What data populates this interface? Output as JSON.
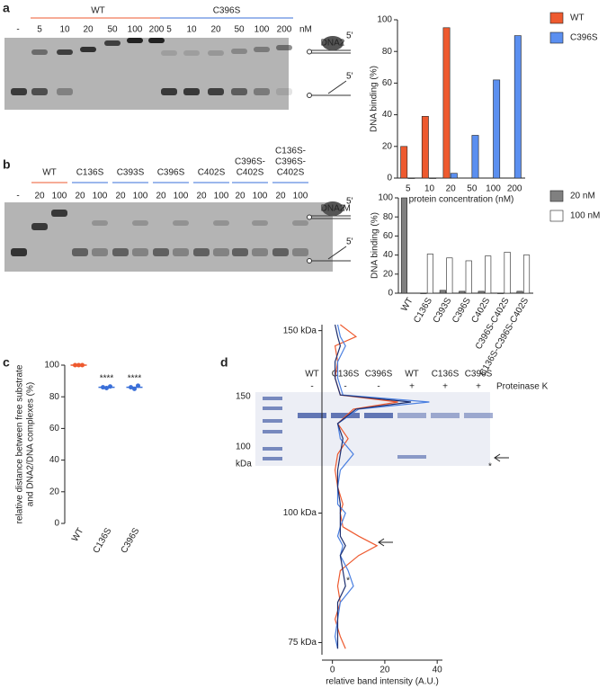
{
  "panels": [
    "a",
    "b",
    "c",
    "d"
  ],
  "gel_a": {
    "control": "-",
    "unit": "nM",
    "protein": "DNA2",
    "end_labels": [
      "5'",
      "5'"
    ],
    "groups": [
      {
        "label": "WT",
        "color": "#ee5a2f",
        "lanes": [
          "5",
          "10",
          "20",
          "50",
          "100",
          "200"
        ]
      },
      {
        "label": "C396S",
        "color": "#3a6fd8",
        "lanes": [
          "5",
          "10",
          "20",
          "50",
          "100",
          "200"
        ]
      }
    ]
  },
  "gel_b": {
    "control": "-",
    "unit": "nM",
    "protein": "DNA2",
    "end_labels": [
      "5'",
      "5'"
    ],
    "groups": [
      {
        "label_lines": [
          "WT"
        ],
        "color": "#ee5a2f",
        "lanes": [
          "20",
          "100"
        ]
      },
      {
        "label_lines": [
          "C136S"
        ],
        "color": "#3a6fd8",
        "lanes": [
          "20",
          "100"
        ]
      },
      {
        "label_lines": [
          "C393S"
        ],
        "color": "#3a6fd8",
        "lanes": [
          "20",
          "100"
        ]
      },
      {
        "label_lines": [
          "C396S"
        ],
        "color": "#3a6fd8",
        "lanes": [
          "20",
          "100"
        ]
      },
      {
        "label_lines": [
          "C402S"
        ],
        "color": "#3a6fd8",
        "lanes": [
          "20",
          "100"
        ]
      },
      {
        "label_lines": [
          "C396S-",
          "C402S"
        ],
        "color": "#3a6fd8",
        "lanes": [
          "20",
          "100"
        ]
      },
      {
        "label_lines": [
          "C136S-",
          "C396S-",
          "C402S"
        ],
        "color": "#3a6fd8",
        "lanes": [
          "20",
          "100"
        ]
      }
    ]
  },
  "gel_d": {
    "treatment_label": "Proteinase K",
    "markers": [
      "150",
      "100"
    ],
    "unit": "kDa",
    "annotation": "*",
    "lanes": [
      {
        "label": "WT",
        "color": "#ee5a2f",
        "treatment": "-"
      },
      {
        "label": "C136S",
        "color": "#3a6fd8",
        "treatment": "-"
      },
      {
        "label": "C396S",
        "color": "#3a6fd8",
        "treatment": "-"
      },
      {
        "label": "WT",
        "color": "#ee5a2f",
        "treatment": "+"
      },
      {
        "label": "C136S",
        "color": "#3a6fd8",
        "treatment": "+"
      },
      {
        "label": "C396S",
        "color": "#3a6fd8",
        "treatment": "+"
      }
    ]
  },
  "chart_data": [
    {
      "type": "bar",
      "y_label": "DNA binding (%)",
      "x_label": "protein concentration (nM)",
      "categories": [
        "5",
        "10",
        "20",
        "50",
        "100",
        "200"
      ],
      "series": [
        {
          "name": "WT",
          "color": "#ee5a2f",
          "values": [
            20,
            39,
            95,
            null,
            null,
            null
          ]
        },
        {
          "name": "C396S",
          "color": "#5b8ff0",
          "values": [
            0,
            0,
            3,
            27,
            62,
            90
          ]
        }
      ],
      "ylim": [
        0,
        100
      ],
      "yticks": [
        0,
        20,
        40,
        60,
        80,
        100
      ],
      "legend": "right"
    },
    {
      "type": "bar",
      "y_label": "DNA binding (%)",
      "categories": [
        "WT",
        "C136S",
        "C393S",
        "C396S",
        "C402S",
        "C396S-C402S",
        "C136S-C396S-C402S"
      ],
      "category_colors": [
        "#ee5a2f",
        "#3a6fd8",
        "#3a6fd8",
        "#3a6fd8",
        "#3a6fd8",
        "#3a6fd8",
        "#3a6fd8"
      ],
      "series": [
        {
          "name": "20 nM",
          "color": "#808080",
          "values": [
            100,
            0,
            3,
            2,
            2,
            0,
            2
          ]
        },
        {
          "name": "100 nM",
          "color": "#ffffff",
          "values": [
            null,
            41,
            37,
            34,
            39,
            43,
            40
          ]
        }
      ],
      "ylim": [
        0,
        100
      ],
      "yticks": [
        0,
        20,
        40,
        60,
        80,
        100
      ],
      "legend": "right"
    },
    {
      "type": "dot",
      "y_label": [
        "relative distance between free substrate",
        "and DNA2/DNA complexes (%)"
      ],
      "categories": [
        "WT",
        "C136S",
        "C396S"
      ],
      "category_colors": [
        "#ee5a2f",
        "#3a6fd8",
        "#3a6fd8"
      ],
      "values": [
        100,
        86,
        86
      ],
      "points": [
        [
          100,
          100,
          100
        ],
        [
          86,
          85.5,
          86.5
        ],
        [
          86,
          85,
          87
        ]
      ],
      "annotations": [
        null,
        "****",
        "****"
      ],
      "ylim": [
        0,
        100
      ],
      "yticks": [
        0,
        20,
        40,
        60,
        80,
        100
      ]
    },
    {
      "type": "line",
      "x_label": "relative band intensity (A.U.)",
      "y": [
        152,
        148,
        145,
        140,
        135,
        130,
        128,
        126,
        122,
        118,
        114,
        110,
        106,
        102,
        100,
        97,
        95,
        93,
        91,
        88,
        85,
        82,
        79,
        76,
        74
      ],
      "series": [
        {
          "color": "#ee5a2f",
          "values": [
            3,
            9,
            1,
            2,
            1,
            3,
            25,
            8,
            2,
            6,
            2,
            1,
            2,
            4,
            3,
            4,
            10,
            17,
            10,
            3,
            2,
            3,
            1,
            3,
            5
          ]
        },
        {
          "color": "#4a7fe0",
          "values": [
            2,
            3,
            5,
            2,
            2,
            4,
            37,
            10,
            2,
            3,
            8,
            3,
            2,
            2,
            5,
            3,
            2,
            4,
            3,
            6,
            8,
            3,
            2,
            1,
            2
          ]
        },
        {
          "color": "#1d2f6f",
          "values": [
            1,
            2,
            3,
            1,
            1,
            3,
            30,
            9,
            2,
            4,
            3,
            2,
            2,
            3,
            3,
            3,
            3,
            5,
            3,
            4,
            5,
            2,
            2,
            2,
            2
          ]
        }
      ],
      "xlim": [
        -4,
        42
      ],
      "xticks": [
        0,
        20,
        40
      ],
      "ylim": [
        73,
        152
      ],
      "ylog": true,
      "yticks": [
        {
          "value": 150,
          "label": "150 kDa"
        },
        {
          "value": 100,
          "label": "100 kDa"
        },
        {
          "value": 75,
          "label": "75 kDa"
        }
      ],
      "annotations": [
        {
          "text": "*",
          "x": 6,
          "y": 86
        }
      ]
    }
  ]
}
